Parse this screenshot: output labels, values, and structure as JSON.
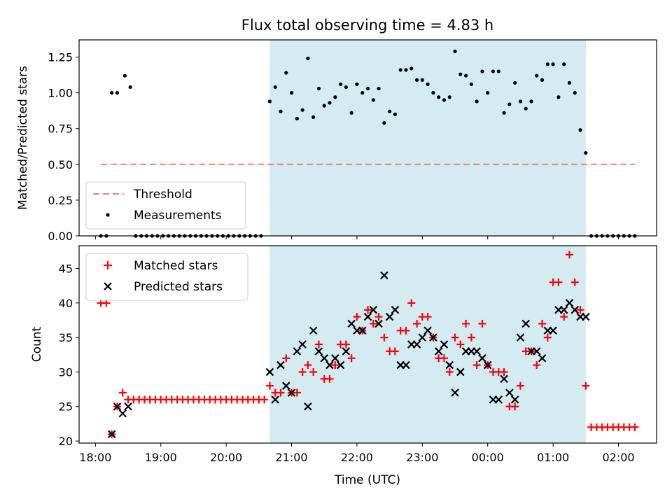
{
  "chart_data": [
    {
      "type": "scatter",
      "title": "Flux total observing time = 4.83 h",
      "xlabel": "",
      "ylabel": "Matched/Predicted stars",
      "x_ticks": [
        "18:00",
        "19:00",
        "20:00",
        "21:00",
        "22:00",
        "23:00",
        "00:00",
        "01:00",
        "02:00"
      ],
      "y_ticks": [
        "0.00",
        "0.25",
        "0.50",
        "0.75",
        "1.00",
        "1.25"
      ],
      "ylim": [
        0,
        1.37
      ],
      "highlight_window": {
        "start": "20:40",
        "end": "01:30",
        "color": "#add8e6"
      },
      "legend_position": "lower-left",
      "threshold": {
        "name": "Threshold",
        "value": 0.5,
        "x_start": "18:05",
        "x_end": "02:15",
        "color": "#f08080"
      },
      "series": [
        {
          "name": "Measurements",
          "color": "#000000",
          "points": [
            [
              "18:05",
              0
            ],
            [
              "18:10",
              0
            ],
            [
              "18:15",
              1.0
            ],
            [
              "18:20",
              1.0
            ],
            [
              "18:27",
              1.12
            ],
            [
              "18:32",
              1.04
            ],
            [
              "18:37",
              0
            ],
            [
              "18:42",
              0
            ],
            [
              "18:47",
              0
            ],
            [
              "18:52",
              0
            ],
            [
              "18:57",
              0
            ],
            [
              "19:02",
              0
            ],
            [
              "19:07",
              0
            ],
            [
              "19:12",
              0
            ],
            [
              "19:17",
              0
            ],
            [
              "19:22",
              0
            ],
            [
              "19:27",
              0
            ],
            [
              "19:32",
              0
            ],
            [
              "19:37",
              0
            ],
            [
              "19:42",
              0
            ],
            [
              "19:47",
              0
            ],
            [
              "19:52",
              0
            ],
            [
              "19:57",
              0
            ],
            [
              "20:02",
              0
            ],
            [
              "20:07",
              0
            ],
            [
              "20:12",
              0
            ],
            [
              "20:17",
              0
            ],
            [
              "20:22",
              0
            ],
            [
              "20:27",
              0
            ],
            [
              "20:32",
              0
            ],
            [
              "20:40",
              0.94
            ],
            [
              "20:45",
              1.04
            ],
            [
              "20:50",
              0.87
            ],
            [
              "20:55",
              1.14
            ],
            [
              "21:00",
              1.0
            ],
            [
              "21:05",
              0.82
            ],
            [
              "21:10",
              0.88
            ],
            [
              "21:15",
              1.24
            ],
            [
              "21:20",
              0.83
            ],
            [
              "21:25",
              1.03
            ],
            [
              "21:30",
              0.91
            ],
            [
              "21:35",
              0.93
            ],
            [
              "21:40",
              0.97
            ],
            [
              "21:45",
              1.06
            ],
            [
              "21:50",
              1.04
            ],
            [
              "21:55",
              0.86
            ],
            [
              "22:00",
              1.06
            ],
            [
              "22:05",
              1.0
            ],
            [
              "22:10",
              1.03
            ],
            [
              "22:15",
              0.95
            ],
            [
              "22:20",
              1.03
            ],
            [
              "22:25",
              0.79
            ],
            [
              "22:30",
              0.87
            ],
            [
              "22:35",
              0.85
            ],
            [
              "22:40",
              1.16
            ],
            [
              "22:45",
              1.16
            ],
            [
              "22:50",
              1.17
            ],
            [
              "22:55",
              1.09
            ],
            [
              "23:00",
              1.09
            ],
            [
              "23:05",
              1.06
            ],
            [
              "23:10",
              1.0
            ],
            [
              "23:15",
              0.97
            ],
            [
              "23:20",
              0.95
            ],
            [
              "23:25",
              0.97
            ],
            [
              "23:30",
              1.29
            ],
            [
              "23:35",
              1.13
            ],
            [
              "23:40",
              1.12
            ],
            [
              "23:45",
              1.06
            ],
            [
              "23:50",
              0.94
            ],
            [
              "23:55",
              1.15
            ],
            [
              "00:00",
              1.0
            ],
            [
              "00:05",
              1.15
            ],
            [
              "00:10",
              1.15
            ],
            [
              "00:15",
              0.86
            ],
            [
              "00:20",
              0.92
            ],
            [
              "00:25",
              1.07
            ],
            [
              "00:30",
              0.94
            ],
            [
              "00:35",
              0.89
            ],
            [
              "00:40",
              0.94
            ],
            [
              "00:45",
              1.12
            ],
            [
              "00:50",
              1.09
            ],
            [
              "00:55",
              1.2
            ],
            [
              "01:00",
              1.2
            ],
            [
              "01:05",
              0.97
            ],
            [
              "01:10",
              1.2
            ],
            [
              "01:15",
              1.07
            ],
            [
              "01:20",
              1.0
            ],
            [
              "01:25",
              0.74
            ],
            [
              "01:30",
              0.58
            ],
            [
              "01:35",
              0
            ],
            [
              "01:40",
              0
            ],
            [
              "01:45",
              0
            ],
            [
              "01:50",
              0
            ],
            [
              "01:55",
              0
            ],
            [
              "02:00",
              0
            ],
            [
              "02:05",
              0
            ],
            [
              "02:10",
              0
            ],
            [
              "02:15",
              0
            ]
          ]
        }
      ]
    },
    {
      "type": "scatter",
      "title": "",
      "xlabel": "Time (UTC)",
      "ylabel": "Count",
      "x_ticks": [
        "18:00",
        "19:00",
        "20:00",
        "21:00",
        "22:00",
        "23:00",
        "00:00",
        "01:00",
        "02:00"
      ],
      "y_ticks": [
        "20",
        "25",
        "30",
        "35",
        "40",
        "45"
      ],
      "ylim": [
        19.7,
        48.3
      ],
      "highlight_window": {
        "start": "20:40",
        "end": "01:30",
        "color": "#add8e6"
      },
      "legend_position": "upper-left",
      "series": [
        {
          "name": "Matched stars",
          "marker": "+",
          "color": "#ff0000",
          "points": [
            [
              "18:05",
              40
            ],
            [
              "18:10",
              40
            ],
            [
              "18:15",
              21
            ],
            [
              "18:20",
              25
            ],
            [
              "18:25",
              27
            ],
            [
              "18:30",
              26
            ],
            [
              "18:35",
              26
            ],
            [
              "18:40",
              26
            ],
            [
              "18:45",
              26
            ],
            [
              "18:50",
              26
            ],
            [
              "18:55",
              26
            ],
            [
              "19:00",
              26
            ],
            [
              "19:05",
              26
            ],
            [
              "19:10",
              26
            ],
            [
              "19:15",
              26
            ],
            [
              "19:20",
              26
            ],
            [
              "19:25",
              26
            ],
            [
              "19:30",
              26
            ],
            [
              "19:35",
              26
            ],
            [
              "19:40",
              26
            ],
            [
              "19:45",
              26
            ],
            [
              "19:50",
              26
            ],
            [
              "19:55",
              26
            ],
            [
              "20:00",
              26
            ],
            [
              "20:05",
              26
            ],
            [
              "20:10",
              26
            ],
            [
              "20:15",
              26
            ],
            [
              "20:20",
              26
            ],
            [
              "20:25",
              26
            ],
            [
              "20:30",
              26
            ],
            [
              "20:35",
              26
            ],
            [
              "20:40",
              28
            ],
            [
              "20:45",
              27
            ],
            [
              "20:50",
              27
            ],
            [
              "20:55",
              32
            ],
            [
              "21:00",
              27
            ],
            [
              "21:05",
              27
            ],
            [
              "21:10",
              30
            ],
            [
              "21:15",
              31
            ],
            [
              "21:20",
              30
            ],
            [
              "21:25",
              34
            ],
            [
              "21:30",
              29
            ],
            [
              "21:35",
              29
            ],
            [
              "21:40",
              31
            ],
            [
              "21:45",
              34
            ],
            [
              "21:50",
              34
            ],
            [
              "21:55",
              32
            ],
            [
              "22:00",
              38
            ],
            [
              "22:05",
              36
            ],
            [
              "22:10",
              39
            ],
            [
              "22:15",
              37
            ],
            [
              "22:20",
              38
            ],
            [
              "22:25",
              35
            ],
            [
              "22:30",
              33
            ],
            [
              "22:35",
              33
            ],
            [
              "22:40",
              36
            ],
            [
              "22:45",
              36
            ],
            [
              "22:50",
              40
            ],
            [
              "22:55",
              37
            ],
            [
              "23:00",
              38
            ],
            [
              "23:05",
              38
            ],
            [
              "23:10",
              35
            ],
            [
              "23:15",
              32
            ],
            [
              "23:20",
              32
            ],
            [
              "23:25",
              30
            ],
            [
              "23:30",
              35
            ],
            [
              "23:35",
              34
            ],
            [
              "23:40",
              37
            ],
            [
              "23:45",
              35
            ],
            [
              "23:50",
              31
            ],
            [
              "23:55",
              37
            ],
            [
              "00:00",
              31
            ],
            [
              "00:05",
              30
            ],
            [
              "00:10",
              30
            ],
            [
              "00:15",
              30
            ],
            [
              "00:20",
              25
            ],
            [
              "00:25",
              25
            ],
            [
              "00:30",
              28
            ],
            [
              "00:35",
              33
            ],
            [
              "00:40",
              33
            ],
            [
              "00:45",
              31
            ],
            [
              "00:50",
              37
            ],
            [
              "00:55",
              35
            ],
            [
              "01:00",
              43
            ],
            [
              "01:05",
              43
            ],
            [
              "01:10",
              38
            ],
            [
              "01:15",
              47
            ],
            [
              "01:20",
              43
            ],
            [
              "01:25",
              39
            ],
            [
              "01:30",
              28
            ],
            [
              "01:35",
              22
            ],
            [
              "01:40",
              22
            ],
            [
              "01:45",
              22
            ],
            [
              "01:50",
              22
            ],
            [
              "01:55",
              22
            ],
            [
              "02:00",
              22
            ],
            [
              "02:05",
              22
            ],
            [
              "02:10",
              22
            ],
            [
              "02:15",
              22
            ]
          ]
        },
        {
          "name": "Predicted stars",
          "marker": "x",
          "color": "#000000",
          "points": [
            [
              "18:15",
              21
            ],
            [
              "18:20",
              25
            ],
            [
              "18:25",
              24
            ],
            [
              "18:30",
              25
            ],
            [
              "20:40",
              30
            ],
            [
              "20:45",
              26
            ],
            [
              "20:50",
              31
            ],
            [
              "20:55",
              28
            ],
            [
              "21:00",
              27
            ],
            [
              "21:05",
              33
            ],
            [
              "21:10",
              34
            ],
            [
              "21:15",
              25
            ],
            [
              "21:20",
              36
            ],
            [
              "21:25",
              33
            ],
            [
              "21:30",
              32
            ],
            [
              "21:35",
              31
            ],
            [
              "21:40",
              32
            ],
            [
              "21:45",
              31
            ],
            [
              "21:50",
              33
            ],
            [
              "21:55",
              37
            ],
            [
              "22:00",
              36
            ],
            [
              "22:05",
              36
            ],
            [
              "22:10",
              38
            ],
            [
              "22:15",
              39
            ],
            [
              "22:20",
              37
            ],
            [
              "22:25",
              44
            ],
            [
              "22:30",
              38
            ],
            [
              "22:35",
              39
            ],
            [
              "22:40",
              31
            ],
            [
              "22:45",
              31
            ],
            [
              "22:50",
              34
            ],
            [
              "22:55",
              34
            ],
            [
              "23:00",
              35
            ],
            [
              "23:05",
              36
            ],
            [
              "23:10",
              35
            ],
            [
              "23:15",
              33
            ],
            [
              "23:20",
              34
            ],
            [
              "23:25",
              31
            ],
            [
              "23:30",
              27
            ],
            [
              "23:35",
              30
            ],
            [
              "23:40",
              33
            ],
            [
              "23:45",
              33
            ],
            [
              "23:50",
              33
            ],
            [
              "23:55",
              32
            ],
            [
              "00:00",
              31
            ],
            [
              "00:05",
              26
            ],
            [
              "00:10",
              26
            ],
            [
              "00:15",
              29
            ],
            [
              "00:20",
              27
            ],
            [
              "00:25",
              26
            ],
            [
              "00:30",
              35
            ],
            [
              "00:35",
              37
            ],
            [
              "00:40",
              33
            ],
            [
              "00:45",
              33
            ],
            [
              "00:50",
              32
            ],
            [
              "00:55",
              36
            ],
            [
              "01:00",
              36
            ],
            [
              "01:05",
              39
            ],
            [
              "01:10",
              39
            ],
            [
              "01:15",
              40
            ],
            [
              "01:20",
              39
            ],
            [
              "01:25",
              38
            ],
            [
              "01:30",
              38
            ]
          ]
        }
      ]
    }
  ]
}
